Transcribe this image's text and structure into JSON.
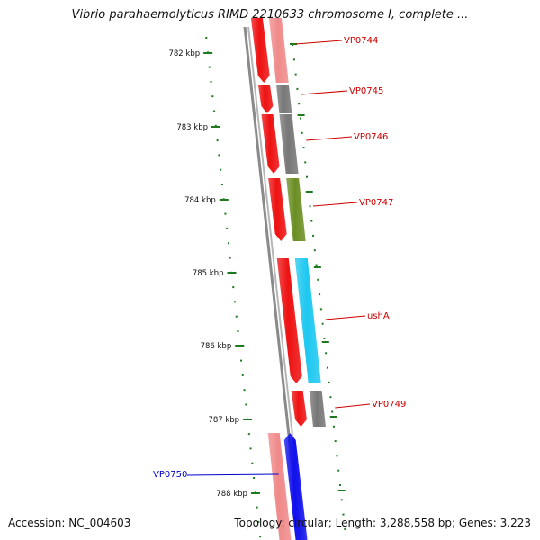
{
  "title": "Vibrio parahaemolyticus RIMD 2210633 chromosome I, complete ...",
  "footer": {
    "accession": "Accession: NC_004603",
    "topology": "Topology: circular; Length: 3,288,558 bp; Genes: 3,223"
  },
  "colors": {
    "backbone": "#8a8a8a",
    "tick": "#1e7a1e",
    "cds_forward": "#ee1111",
    "cds_reverse": "#1111ee",
    "label_forward": "#cc0000",
    "label_reverse": "#0000cc",
    "cog_pink": "#f08a8a",
    "cog_gray": "#777777",
    "cog_olive": "#6b8e23",
    "cog_cyan": "#1ec8f0"
  },
  "kbp_ticks": [
    "782 kbp",
    "783 kbp",
    "784 kbp",
    "785 kbp",
    "786 kbp",
    "787 kbp",
    "788 kbp"
  ],
  "genes": [
    {
      "name": "VP0744",
      "strand": "forward",
      "cog_color": "cog_pink"
    },
    {
      "name": "VP0745",
      "strand": "forward",
      "cog_color": "cog_gray"
    },
    {
      "name": "VP0746",
      "strand": "forward",
      "cog_color": "cog_gray"
    },
    {
      "name": "VP0747",
      "strand": "forward",
      "cog_color": "cog_olive"
    },
    {
      "name": "ushA",
      "strand": "forward",
      "cog_color": "cog_cyan"
    },
    {
      "name": "VP0749",
      "strand": "forward",
      "cog_color": "cog_gray"
    },
    {
      "name": "VP0750",
      "strand": "reverse",
      "cog_color": "cog_pink"
    }
  ]
}
